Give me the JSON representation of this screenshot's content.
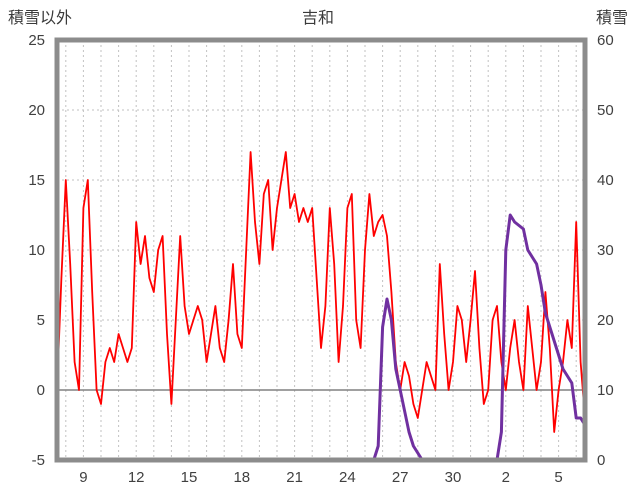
{
  "chart_data": {
    "type": "line",
    "title": "吉和",
    "left_axis": {
      "label": "積雪以外",
      "min": -5,
      "max": 25,
      "ticks": [
        -5,
        0,
        5,
        10,
        15,
        20,
        25
      ]
    },
    "right_axis": {
      "label": "積雪",
      "min": 0,
      "max": 60,
      "ticks": [
        0,
        10,
        20,
        30,
        40,
        50,
        60
      ]
    },
    "x_axis": {
      "min": 7.5,
      "max": 37.5,
      "day_grid_step": 1,
      "tick_labels": [
        "9",
        "12",
        "15",
        "18",
        "21",
        "24",
        "27",
        "30",
        "2",
        "5"
      ],
      "tick_days": [
        9,
        12,
        15,
        18,
        21,
        24,
        27,
        30,
        33,
        36
      ]
    },
    "series": [
      {
        "name": "積雪以外",
        "axis": "left",
        "color": "#ff0000",
        "width": 1.8,
        "x_start": 7.5,
        "x_step": 0.25,
        "values": [
          0,
          8,
          15,
          9,
          2,
          0,
          13,
          15,
          7,
          0,
          -1,
          2,
          3,
          2,
          4,
          3,
          2,
          3,
          12,
          9,
          11,
          8,
          7,
          10,
          11,
          4,
          -1,
          5,
          11,
          6,
          4,
          5,
          6,
          5,
          2,
          4,
          6,
          3,
          2,
          5,
          9,
          4,
          3,
          10,
          17,
          12,
          9,
          14,
          15,
          10,
          13,
          15,
          17,
          13,
          14,
          12,
          13,
          12,
          13,
          8,
          3,
          6,
          13,
          9,
          2,
          6,
          13,
          14,
          5,
          3,
          10,
          14,
          11,
          12,
          12.5,
          11,
          7,
          2,
          0,
          2,
          1,
          -1,
          -2,
          0,
          2,
          1,
          0,
          9,
          4,
          0,
          2,
          6,
          5,
          2,
          5,
          8.5,
          3,
          -1,
          0,
          5,
          6,
          2,
          0,
          3,
          5,
          2,
          0,
          6,
          3,
          0,
          2,
          7,
          3,
          -3,
          0,
          2,
          5,
          3,
          12,
          2,
          -2
        ]
      },
      {
        "name": "積雪",
        "axis": "right",
        "color": "#7030a0",
        "width": 3,
        "x_start": 25.5,
        "x_step": 0.25,
        "values": [
          0,
          2,
          19,
          23,
          20,
          13,
          10,
          7,
          4,
          2,
          1,
          0,
          0,
          0,
          0,
          0,
          0,
          0,
          0,
          0,
          0,
          0,
          0,
          0,
          0,
          0,
          0,
          0,
          0,
          4,
          30,
          35,
          34,
          33.5,
          33,
          30,
          29,
          28,
          25,
          21,
          19,
          17,
          15,
          13,
          12,
          11,
          6,
          6,
          5
        ]
      }
    ],
    "colors": {
      "grid": "#c2c2c2",
      "frame": "#8c8c8c",
      "zero_line": "#808080",
      "tick_text": "#404040"
    }
  }
}
